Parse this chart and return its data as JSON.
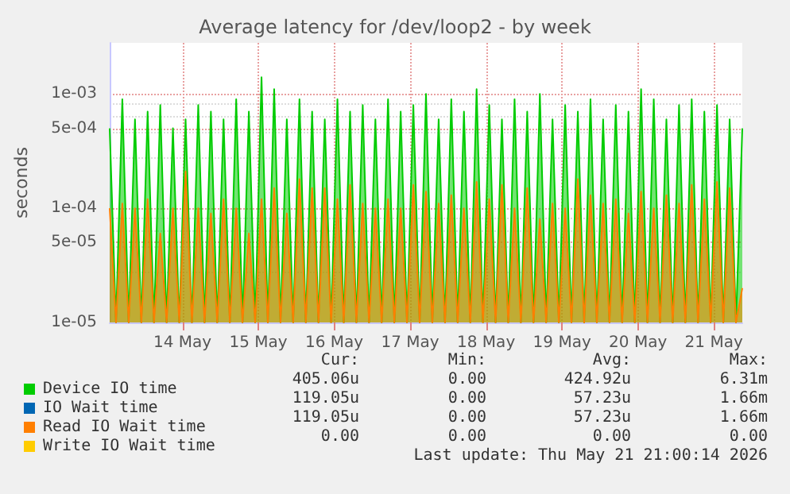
{
  "chart_data": {
    "type": "area",
    "title": "Average latency for /dev/loop2 - by week",
    "ylabel": "seconds",
    "log": "y",
    "grid": true,
    "legend": "bottom left",
    "marker": "none",
    "xlim": [
      "2026-05-13T01:00",
      "2026-05-21T09:00"
    ],
    "xticks": [
      {
        "value": "2026-05-14",
        "label": "14 May"
      },
      {
        "value": "2026-05-15",
        "label": "15 May"
      },
      {
        "value": "2026-05-16",
        "label": "16 May"
      },
      {
        "value": "2026-05-17",
        "label": "17 May"
      },
      {
        "value": "2026-05-18",
        "label": "18 May"
      },
      {
        "value": "2026-05-19",
        "label": "19 May"
      },
      {
        "value": "2026-05-20",
        "label": "20 May"
      },
      {
        "value": "2026-05-21",
        "label": "21 May"
      }
    ],
    "ylim": [
      1e-05,
      0.0028
    ],
    "yticks": [
      {
        "value": 1e-05,
        "label": "1e-05"
      },
      {
        "value": 5e-05,
        "label": "5e-05"
      },
      {
        "value": 0.0001,
        "label": "1e-04"
      },
      {
        "value": 0.0005,
        "label": "5e-04"
      },
      {
        "value": 0.001,
        "label": "1e-03"
      }
    ],
    "x": [
      "2026-05-13T01:00",
      "2026-05-13T03:00",
      "2026-05-13T05:00",
      "2026-05-13T07:00",
      "2026-05-13T09:00",
      "2026-05-13T11:00",
      "2026-05-13T13:00",
      "2026-05-13T15:00",
      "2026-05-13T17:00",
      "2026-05-13T19:00",
      "2026-05-13T21:00",
      "2026-05-13T23:00",
      "2026-05-14T01:00",
      "2026-05-14T03:00",
      "2026-05-14T05:00",
      "2026-05-14T07:00",
      "2026-05-14T09:00",
      "2026-05-14T11:00",
      "2026-05-14T13:00",
      "2026-05-14T15:00",
      "2026-05-14T17:00",
      "2026-05-14T19:00",
      "2026-05-14T21:00",
      "2026-05-14T23:00",
      "2026-05-15T01:00",
      "2026-05-15T03:00",
      "2026-05-15T05:00",
      "2026-05-15T07:00",
      "2026-05-15T09:00",
      "2026-05-15T11:00",
      "2026-05-15T13:00",
      "2026-05-15T15:00",
      "2026-05-15T17:00",
      "2026-05-15T19:00",
      "2026-05-15T21:00",
      "2026-05-15T23:00",
      "2026-05-16T01:00",
      "2026-05-16T03:00",
      "2026-05-16T05:00",
      "2026-05-16T07:00",
      "2026-05-16T09:00",
      "2026-05-16T11:00",
      "2026-05-16T13:00",
      "2026-05-16T15:00",
      "2026-05-16T17:00",
      "2026-05-16T19:00",
      "2026-05-16T21:00",
      "2026-05-16T23:00",
      "2026-05-17T01:00",
      "2026-05-17T03:00",
      "2026-05-17T05:00",
      "2026-05-17T07:00",
      "2026-05-17T09:00",
      "2026-05-17T11:00",
      "2026-05-17T13:00",
      "2026-05-17T15:00",
      "2026-05-17T17:00",
      "2026-05-17T19:00",
      "2026-05-17T21:00",
      "2026-05-17T23:00",
      "2026-05-18T01:00",
      "2026-05-18T03:00",
      "2026-05-18T05:00",
      "2026-05-18T07:00",
      "2026-05-18T09:00",
      "2026-05-18T11:00",
      "2026-05-18T13:00",
      "2026-05-18T15:00",
      "2026-05-18T17:00",
      "2026-05-18T19:00",
      "2026-05-18T21:00",
      "2026-05-18T23:00",
      "2026-05-19T01:00",
      "2026-05-19T03:00",
      "2026-05-19T05:00",
      "2026-05-19T07:00",
      "2026-05-19T09:00",
      "2026-05-19T11:00",
      "2026-05-19T13:00",
      "2026-05-19T15:00",
      "2026-05-19T17:00",
      "2026-05-19T19:00",
      "2026-05-19T21:00",
      "2026-05-19T23:00",
      "2026-05-20T01:00",
      "2026-05-20T03:00",
      "2026-05-20T05:00",
      "2026-05-20T07:00",
      "2026-05-20T09:00",
      "2026-05-20T11:00",
      "2026-05-20T13:00",
      "2026-05-20T15:00",
      "2026-05-20T17:00",
      "2026-05-20T19:00",
      "2026-05-20T21:00",
      "2026-05-20T23:00",
      "2026-05-21T01:00",
      "2026-05-21T03:00",
      "2026-05-21T05:00",
      "2026-05-21T07:00",
      "2026-05-21T09:00"
    ],
    "series": [
      {
        "name": "Device IO time",
        "color": "#00cc00",
        "values": [
          0.0005,
          1e-05,
          0.0009,
          1e-05,
          0.0006,
          1e-05,
          0.0007,
          1e-05,
          0.0008,
          1e-05,
          0.0005,
          1e-05,
          0.0006,
          1e-05,
          0.0008,
          1e-05,
          0.0007,
          1e-05,
          0.0006,
          1e-05,
          0.0009,
          1e-05,
          0.0007,
          1e-05,
          0.0014,
          1e-05,
          0.0011,
          1e-05,
          0.0006,
          1e-05,
          0.0009,
          1e-05,
          0.0007,
          1e-05,
          0.0006,
          1e-05,
          0.0009,
          1e-05,
          0.0007,
          1e-05,
          0.0008,
          1e-05,
          0.0006,
          1e-05,
          0.0009,
          1e-05,
          0.0007,
          1e-05,
          0.0008,
          1e-05,
          0.001,
          1e-05,
          0.0006,
          1e-05,
          0.0009,
          1e-05,
          0.0007,
          1e-05,
          0.0011,
          1e-05,
          0.0008,
          1e-05,
          0.0006,
          1e-05,
          0.0009,
          1e-05,
          0.0007,
          1e-05,
          0.001,
          1e-05,
          0.0006,
          1e-05,
          0.0008,
          1e-05,
          0.0007,
          1e-05,
          0.0009,
          1e-05,
          0.0006,
          1e-05,
          0.0008,
          1e-05,
          0.0007,
          1e-05,
          0.0011,
          1e-05,
          0.0009,
          1e-05,
          0.0006,
          1e-05,
          0.0008,
          1e-05,
          0.0009,
          1e-05,
          0.0007,
          1e-05,
          0.0008,
          1e-05,
          0.0006,
          1e-05,
          0.0005
        ]
      },
      {
        "name": "IO Wait time",
        "color": "#0066b3",
        "values": [
          null,
          null,
          null,
          null,
          null,
          null,
          null,
          null,
          null,
          null,
          null,
          null,
          null,
          null,
          null,
          null,
          null,
          null,
          null,
          null,
          null,
          null,
          null,
          null,
          null,
          null,
          null,
          null,
          null,
          null,
          null,
          null,
          null,
          null,
          null,
          null,
          null,
          null,
          null,
          null,
          null,
          null,
          null,
          null,
          null,
          null,
          null,
          null,
          null,
          null,
          null,
          null,
          null,
          null,
          null,
          null,
          null,
          null,
          null,
          null,
          null,
          null,
          null,
          null,
          null,
          null,
          null,
          null,
          null,
          null,
          null,
          null,
          null,
          null,
          null,
          null,
          null,
          null,
          null,
          null,
          null,
          null,
          null,
          null,
          null,
          null,
          null,
          null,
          null,
          null,
          null,
          null,
          null,
          null,
          null,
          null,
          null,
          null,
          null,
          null,
          null
        ]
      },
      {
        "name": "Read IO Wait time",
        "color": "#ff7f00",
        "values": [
          0.0001,
          1e-05,
          0.00011,
          1e-05,
          0.0001,
          1e-05,
          0.00012,
          1e-05,
          6e-05,
          1e-05,
          0.0001,
          1e-05,
          0.00021,
          1e-05,
          0.0001,
          1e-05,
          9e-05,
          1e-05,
          0.00012,
          1e-05,
          0.0001,
          1e-05,
          6e-05,
          1e-05,
          0.00012,
          1e-05,
          0.00015,
          1e-05,
          9e-05,
          1e-05,
          0.00018,
          1e-05,
          0.00015,
          1e-05,
          0.00015,
          1e-05,
          0.00012,
          1e-05,
          0.00016,
          1e-05,
          0.00011,
          1e-05,
          0.0001,
          1e-05,
          0.00012,
          1e-05,
          0.0001,
          1e-05,
          0.00016,
          1e-05,
          0.00014,
          1e-05,
          0.00011,
          1e-05,
          0.00013,
          1e-05,
          0.0001,
          1e-05,
          0.00017,
          1e-05,
          0.00012,
          1e-05,
          0.00016,
          1e-05,
          0.0001,
          1e-05,
          0.00015,
          1e-05,
          8e-05,
          1e-05,
          0.00011,
          1e-05,
          0.0001,
          1e-05,
          0.00018,
          1e-05,
          0.00013,
          1e-05,
          0.00011,
          1e-05,
          0.00012,
          1e-05,
          9e-05,
          1e-05,
          0.00014,
          1e-05,
          0.0001,
          1e-05,
          0.00013,
          1e-05,
          0.00011,
          1e-05,
          0.00016,
          1e-05,
          0.00012,
          1e-05,
          0.00017,
          1e-05,
          0.00015,
          1e-05,
          2e-05
        ]
      },
      {
        "name": "Write IO Wait time",
        "color": "#ffcc00",
        "values": [
          null,
          null,
          null,
          null,
          null,
          null,
          null,
          null,
          null,
          null,
          null,
          null,
          null,
          null,
          null,
          null,
          null,
          null,
          null,
          null,
          null,
          null,
          null,
          null,
          null,
          null,
          null,
          null,
          null,
          null,
          null,
          null,
          null,
          null,
          null,
          null,
          null,
          null,
          null,
          null,
          null,
          null,
          null,
          null,
          null,
          null,
          null,
          null,
          null,
          null,
          null,
          null,
          null,
          null,
          null,
          null,
          null,
          null,
          null,
          null,
          null,
          null,
          null,
          null,
          null,
          null,
          null,
          null,
          null,
          null,
          null,
          null,
          null,
          null,
          null,
          null,
          null,
          null,
          null,
          null,
          null,
          null,
          null,
          null,
          null,
          null,
          null,
          null,
          null,
          null,
          null,
          null,
          null,
          null,
          null,
          null,
          null,
          null,
          null,
          null,
          null
        ]
      }
    ],
    "annotations": [
      "Cur:",
      "Min:",
      "Avg:",
      "Max:",
      "405.06u",
      "0.00",
      "424.92u",
      "6.31m",
      "119.05u",
      "0.00",
      "57.23u",
      "1.66m",
      "119.05u",
      "0.00",
      "57.23u",
      "1.66m",
      "0.00",
      "0.00",
      "0.00",
      "0.00",
      "Last update: Thu May 21 21:00:14 2026"
    ]
  }
}
